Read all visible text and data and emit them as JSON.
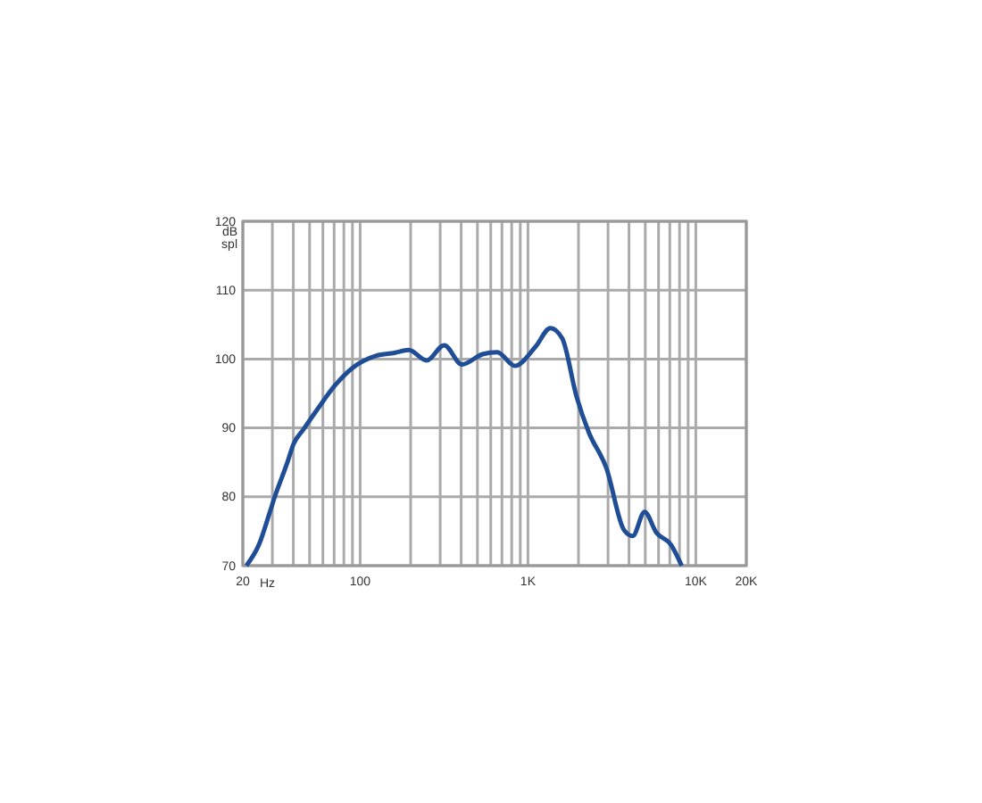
{
  "chart_data": {
    "type": "line",
    "xlabel": "Hz",
    "ylabel": "dB spl",
    "log": "x",
    "grid": true,
    "marker": "none",
    "line_style": "solid",
    "xlim": [
      20,
      20000
    ],
    "ylim": [
      70,
      120
    ],
    "xticks": [
      20,
      {
        "value": 30,
        "label": null
      },
      {
        "value": 40,
        "label": null
      },
      {
        "value": 50,
        "label": null
      },
      {
        "value": 60,
        "label": null
      },
      {
        "value": 70,
        "label": null
      },
      {
        "value": 80,
        "label": null
      },
      {
        "value": 90,
        "label": null
      },
      100,
      {
        "value": 200,
        "label": null
      },
      {
        "value": 300,
        "label": null
      },
      {
        "value": 400,
        "label": null
      },
      {
        "value": 500,
        "label": null
      },
      {
        "value": 600,
        "label": null
      },
      {
        "value": 700,
        "label": null
      },
      {
        "value": 800,
        "label": null
      },
      {
        "value": 900,
        "label": null
      },
      {
        "value": 1000,
        "label": "1K"
      },
      {
        "value": 2000,
        "label": null
      },
      {
        "value": 3000,
        "label": null
      },
      {
        "value": 4000,
        "label": null
      },
      {
        "value": 5000,
        "label": null
      },
      {
        "value": 6000,
        "label": null
      },
      {
        "value": 7000,
        "label": null
      },
      {
        "value": 8000,
        "label": null
      },
      {
        "value": 9000,
        "label": null
      },
      {
        "value": 10000,
        "label": "10K"
      },
      {
        "value": 20000,
        "label": "20K"
      }
    ],
    "yticks": [
      70,
      80,
      90,
      100,
      110,
      120
    ],
    "series": [
      {
        "color": "#1f4e96",
        "x": [
          21,
          25,
          29,
          31,
          37,
          40,
          46,
          56,
          71,
          91,
          125,
          160,
          195,
          249,
          317,
          404,
          536,
          656,
          836,
          1110,
          1360,
          1600,
          1950,
          2300,
          2930,
          3730,
          4210,
          4950,
          5820,
          7130,
          8240
        ],
        "values": [
          70,
          73.1,
          77.8,
          80,
          85.1,
          87.6,
          89.8,
          92.8,
          96.2,
          98.8,
          100.5,
          100.9,
          101.3,
          99.8,
          102,
          99.2,
          100.7,
          101,
          99,
          101.8,
          104.5,
          103,
          94.5,
          89.4,
          84.2,
          75.2,
          74.3,
          77.8,
          74.8,
          73,
          70
        ]
      }
    ]
  }
}
